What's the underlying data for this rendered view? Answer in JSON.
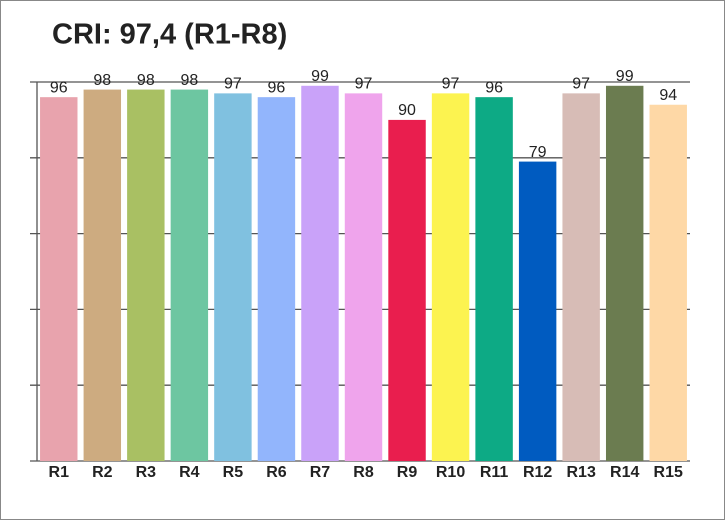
{
  "chart_data": {
    "type": "bar",
    "title": "CRI: 97,4 (R1-R8)",
    "categories": [
      "R1",
      "R2",
      "R3",
      "R4",
      "R5",
      "R6",
      "R7",
      "R8",
      "R9",
      "R10",
      "R11",
      "R12",
      "R13",
      "R14",
      "R15"
    ],
    "values": [
      96,
      98,
      98,
      98,
      97,
      96,
      99,
      97,
      90,
      97,
      96,
      79,
      97,
      99,
      94
    ],
    "colors": [
      "#e8a3ad",
      "#cdab80",
      "#a9c063",
      "#6dc6a1",
      "#80c1e0",
      "#92b5fc",
      "#c9a2f9",
      "#efa4ec",
      "#e91e4e",
      "#fcf350",
      "#0daa85",
      "#005bc0",
      "#d7bcb6",
      "#6b7c50",
      "#fed8a6"
    ],
    "ylim": [
      0,
      100
    ],
    "yticks": [
      0,
      20,
      40,
      60,
      80,
      100
    ],
    "grid": true
  }
}
